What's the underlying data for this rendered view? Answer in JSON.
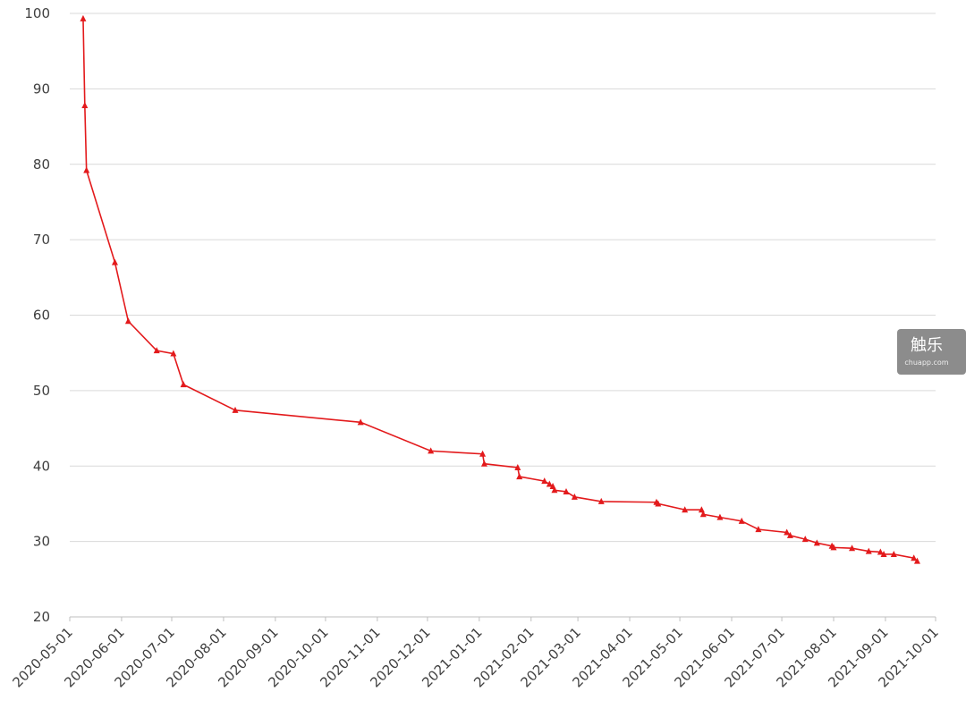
{
  "chart_data": {
    "type": "line",
    "x": [
      "2020-05-09",
      "2020-05-10",
      "2020-05-11",
      "2020-05-28",
      "2020-06-05",
      "2020-06-22",
      "2020-07-02",
      "2020-07-08",
      "2020-08-08",
      "2020-10-22",
      "2020-12-03",
      "2021-01-03",
      "2021-01-04",
      "2021-01-24",
      "2021-01-25",
      "2021-02-09",
      "2021-02-12",
      "2021-02-14",
      "2021-02-15",
      "2021-02-22",
      "2021-02-27",
      "2021-03-15",
      "2021-04-17",
      "2021-04-18",
      "2021-05-04",
      "2021-05-14",
      "2021-05-15",
      "2021-05-25",
      "2021-06-07",
      "2021-06-17",
      "2021-07-04",
      "2021-07-06",
      "2021-07-15",
      "2021-07-22",
      "2021-07-31",
      "2021-08-01",
      "2021-08-12",
      "2021-08-22",
      "2021-08-29",
      "2021-08-31",
      "2021-09-06",
      "2021-09-18",
      "2021-09-20"
    ],
    "series": [
      {
        "color": "#e31a1c",
        "marker": "triangle",
        "values": [
          99.3,
          87.8,
          79.2,
          67,
          59.2,
          55.3,
          54.9,
          50.8,
          47.4,
          45.8,
          42.0,
          41.6,
          40.3,
          39.8,
          38.6,
          38.0,
          37.6,
          37.3,
          36.8,
          36.6,
          35.9,
          35.3,
          35.2,
          35.0,
          34.2,
          34.2,
          33.6,
          33.2,
          32.7,
          31.6,
          31.2,
          30.8,
          30.3,
          29.8,
          29.4,
          29.2,
          29.1,
          28.7,
          28.6,
          28.3,
          28.3,
          27.8,
          27.4
        ]
      }
    ],
    "xlim": [
      "2020-05-01",
      "2021-10-01"
    ],
    "xticks": [
      "2020-05-01",
      "2020-06-01",
      "2020-07-01",
      "2020-08-01",
      "2020-09-01",
      "2020-10-01",
      "2020-11-01",
      "2020-12-01",
      "2021-01-01",
      "2021-02-01",
      "2021-03-01",
      "2021-04-01",
      "2021-05-01",
      "2021-06-01",
      "2021-07-01",
      "2021-08-01",
      "2021-09-01",
      "2021-10-01"
    ],
    "ylim": [
      20,
      100
    ],
    "yticks": [
      20,
      30,
      40,
      50,
      60,
      70,
      80,
      90,
      100
    ],
    "grid": true,
    "watermark": {
      "name": "触乐",
      "site": "chuapp.com"
    }
  }
}
